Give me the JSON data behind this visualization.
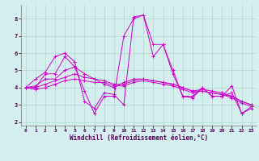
{
  "xlabel": "Windchill (Refroidissement éolien,°C)",
  "ylabel": "",
  "background_color": "#d5eef0",
  "grid_color": "#b0d8cc",
  "line_color": "#cc00cc",
  "xlim": [
    -0.5,
    23.5
  ],
  "ylim": [
    1.8,
    8.8
  ],
  "yticks": [
    2,
    3,
    4,
    5,
    6,
    7,
    8
  ],
  "xticks": [
    0,
    1,
    2,
    3,
    4,
    5,
    6,
    7,
    8,
    9,
    10,
    11,
    12,
    13,
    14,
    15,
    16,
    17,
    18,
    19,
    20,
    21,
    22,
    23
  ],
  "lines": [
    {
      "x": [
        0,
        1,
        2,
        3,
        4,
        5,
        6,
        7,
        8,
        9,
        10,
        11,
        12,
        13,
        14,
        15,
        16,
        17,
        18,
        19,
        20,
        21,
        22,
        23
      ],
      "y": [
        4.0,
        4.5,
        4.9,
        5.8,
        6.0,
        5.5,
        3.2,
        2.8,
        3.7,
        3.6,
        3.0,
        8.1,
        8.2,
        6.5,
        6.5,
        5.0,
        3.5,
        3.5,
        4.0,
        3.5,
        3.5,
        4.1,
        2.5,
        2.8
      ]
    },
    {
      "x": [
        0,
        1,
        2,
        3,
        4,
        5,
        6,
        7,
        8,
        9,
        10,
        11,
        12,
        13,
        14,
        15,
        16,
        17,
        18,
        19,
        20,
        21,
        22,
        23
      ],
      "y": [
        4.0,
        4.0,
        4.8,
        4.8,
        5.8,
        5.2,
        3.8,
        2.5,
        3.5,
        3.5,
        7.0,
        8.0,
        8.2,
        5.8,
        6.5,
        4.8,
        3.5,
        3.4,
        4.0,
        3.5,
        3.5,
        3.7,
        2.5,
        2.9
      ]
    },
    {
      "x": [
        0,
        1,
        2,
        3,
        4,
        5,
        6,
        7,
        8,
        9,
        10,
        11,
        12,
        13,
        14,
        15,
        16,
        17,
        18,
        19,
        20,
        21,
        22,
        23
      ],
      "y": [
        4.0,
        4.1,
        4.5,
        4.5,
        5.0,
        5.2,
        4.8,
        4.5,
        4.2,
        4.0,
        4.3,
        4.5,
        4.5,
        4.4,
        4.3,
        4.2,
        4.0,
        3.8,
        3.8,
        3.7,
        3.6,
        3.5,
        3.2,
        3.0
      ]
    },
    {
      "x": [
        0,
        1,
        2,
        3,
        4,
        5,
        6,
        7,
        8,
        9,
        10,
        11,
        12,
        13,
        14,
        15,
        16,
        17,
        18,
        19,
        20,
        21,
        22,
        23
      ],
      "y": [
        4.0,
        4.0,
        4.2,
        4.4,
        4.6,
        4.8,
        4.6,
        4.5,
        4.4,
        4.2,
        4.2,
        4.4,
        4.5,
        4.4,
        4.3,
        4.2,
        4.0,
        3.8,
        3.9,
        3.8,
        3.7,
        3.5,
        3.2,
        3.0
      ]
    },
    {
      "x": [
        0,
        1,
        2,
        3,
        4,
        5,
        6,
        7,
        8,
        9,
        10,
        11,
        12,
        13,
        14,
        15,
        16,
        17,
        18,
        19,
        20,
        21,
        22,
        23
      ],
      "y": [
        4.0,
        3.9,
        4.0,
        4.2,
        4.4,
        4.5,
        4.4,
        4.3,
        4.3,
        4.1,
        4.1,
        4.3,
        4.4,
        4.3,
        4.2,
        4.1,
        3.9,
        3.7,
        3.8,
        3.7,
        3.6,
        3.4,
        3.1,
        2.9
      ]
    }
  ]
}
